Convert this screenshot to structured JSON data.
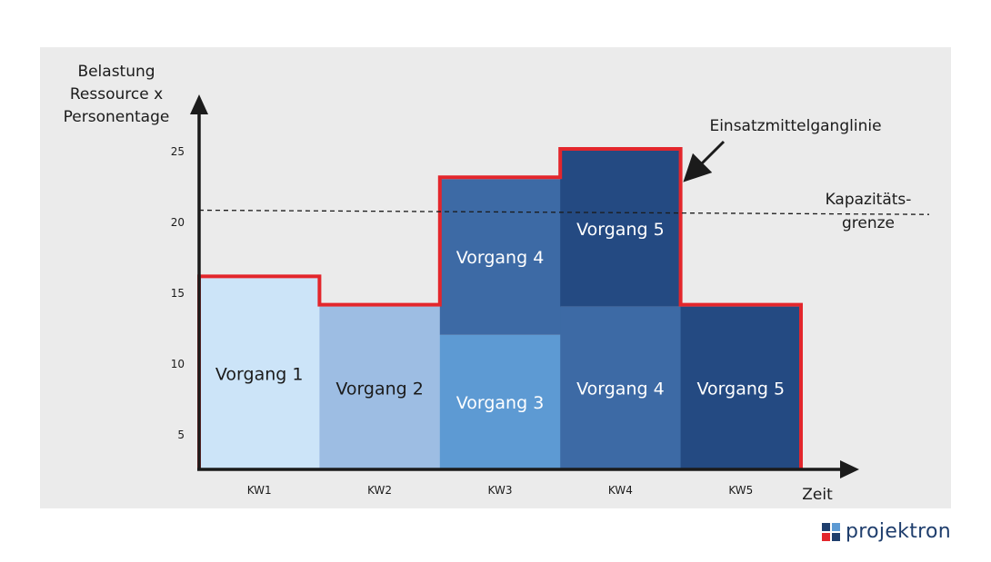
{
  "chart_data": {
    "type": "bar",
    "stacked": true,
    "ylabel": [
      "Belastung",
      "Ressource x",
      "Personentage"
    ],
    "xlabel": "Zeit",
    "categories": [
      "KW1",
      "KW2",
      "KW3",
      "KW4",
      "KW5"
    ],
    "yticks": [
      5,
      10,
      15,
      20,
      25
    ],
    "ylim": [
      2.5,
      27.5
    ],
    "grid": false,
    "series": [
      {
        "name": "Vorgang 1",
        "color": "#cce4f8"
      },
      {
        "name": "Vorgang 2",
        "color": "#9dbde3"
      },
      {
        "name": "Vorgang 3",
        "color": "#5d9ad3"
      },
      {
        "name": "Vorgang 4",
        "color": "#3d6aa5"
      },
      {
        "name": "Vorgang 5",
        "color": "#244a82"
      }
    ],
    "segments": [
      {
        "category": "KW1",
        "series": "Vorgang 1",
        "from": 2.5,
        "to": 16,
        "label": "Vorgang 1",
        "label_dark": true
      },
      {
        "category": "KW2",
        "series": "Vorgang 2",
        "from": 2.5,
        "to": 14,
        "label": "Vorgang 2",
        "label_dark": true
      },
      {
        "category": "KW3",
        "series": "Vorgang 3",
        "from": 2.5,
        "to": 12,
        "label": "Vorgang 3",
        "label_dark": false
      },
      {
        "category": "KW3",
        "series": "Vorgang 4",
        "from": 12,
        "to": 23,
        "label": "Vorgang 4",
        "label_dark": false
      },
      {
        "category": "KW4",
        "series": "Vorgang 4",
        "from": 2.5,
        "to": 14,
        "label": "Vorgang 4",
        "label_dark": false
      },
      {
        "category": "KW4",
        "series": "Vorgang 5",
        "from": 14,
        "to": 25,
        "label": "Vorgang 5",
        "label_dark": false
      },
      {
        "category": "KW5",
        "series": "Vorgang 5",
        "from": 2.5,
        "to": 14,
        "label": "Vorgang 5",
        "label_dark": false
      }
    ],
    "load_totals": [
      16,
      14,
      23,
      25,
      14
    ],
    "load_line": {
      "label": "Einsatzmittelganglinie",
      "color": "#e3262c"
    },
    "capacity": {
      "label": [
        "Kapazitäts-",
        "grenze"
      ],
      "value_start": 20.8,
      "value_end": 20.5,
      "style": "dashed"
    }
  },
  "brand": {
    "name": "projektron",
    "colors": [
      "#1f3e6d",
      "#e3262c",
      "#5d9ad3"
    ]
  }
}
